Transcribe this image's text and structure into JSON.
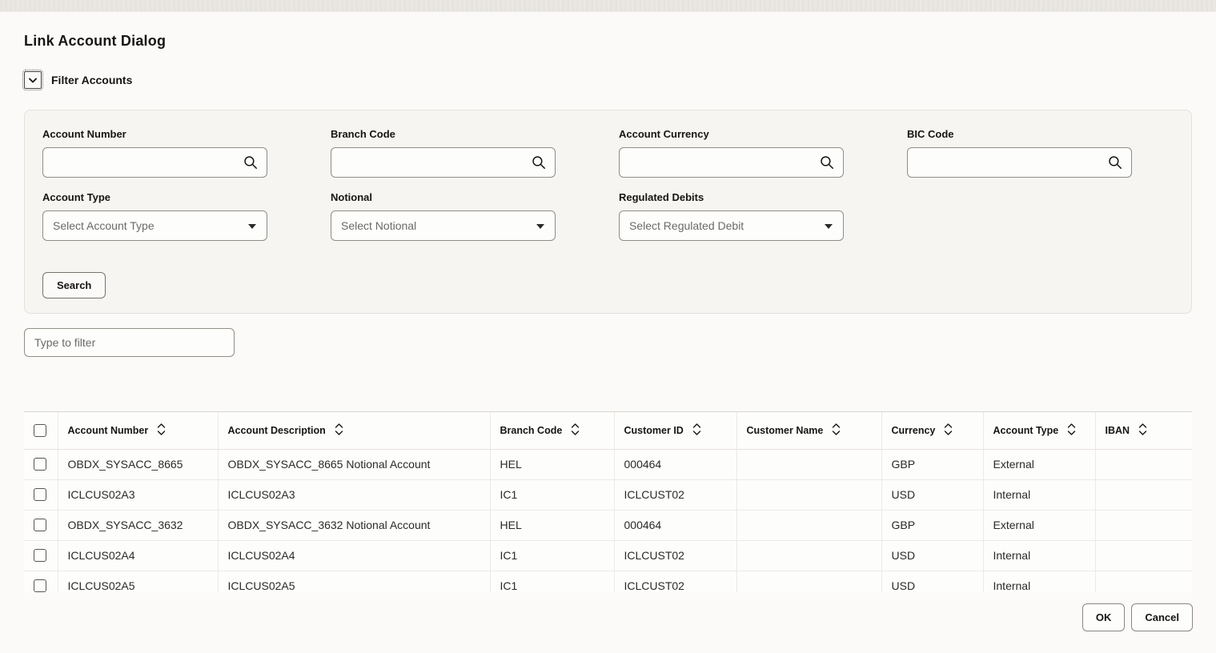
{
  "page": {
    "title": "Link Account Dialog",
    "filter_section_label": "Filter Accounts"
  },
  "filter_panel": {
    "fields": [
      {
        "label": "Account Number",
        "value": ""
      },
      {
        "label": "Branch Code",
        "value": ""
      },
      {
        "label": "Account Currency",
        "value": ""
      },
      {
        "label": "BIC Code",
        "value": ""
      }
    ],
    "selects": [
      {
        "label": "Account Type",
        "value": "Select Account Type"
      },
      {
        "label": "Notional",
        "value": "Select Notional"
      },
      {
        "label": "Regulated Debits",
        "value": "Select Regulated Debit"
      }
    ],
    "search_button_label": "Search"
  },
  "list_filter": {
    "placeholder": "Type to filter",
    "value": ""
  },
  "table": {
    "columns": [
      "Account Number",
      "Account Description",
      "Branch Code",
      "Customer ID",
      "Customer Name",
      "Currency",
      "Account Type",
      "IBAN"
    ],
    "column_keys": [
      "account-number",
      "account-description",
      "branch-code",
      "customer-id",
      "customer-name",
      "currency",
      "account-type",
      "iban"
    ],
    "rows": [
      [
        "OBDX_SYSACC_8665",
        "OBDX_SYSACC_8665 Notional Account",
        "HEL",
        "000464",
        "",
        "GBP",
        "External",
        ""
      ],
      [
        "ICLCUS02A3",
        "ICLCUS02A3",
        "IC1",
        "ICLCUST02",
        "",
        "USD",
        "Internal",
        ""
      ],
      [
        "OBDX_SYSACC_3632",
        "OBDX_SYSACC_3632 Notional Account",
        "HEL",
        "000464",
        "",
        "GBP",
        "External",
        ""
      ],
      [
        "ICLCUS02A4",
        "ICLCUS02A4",
        "IC1",
        "ICLCUST02",
        "",
        "USD",
        "Internal",
        ""
      ],
      [
        "ICLCUS02A5",
        "ICLCUS02A5",
        "IC1",
        "ICLCUST02",
        "",
        "USD",
        "Internal",
        ""
      ]
    ],
    "all_selected": false,
    "row_selected": [
      false,
      false,
      false,
      false,
      false
    ]
  },
  "footer": {
    "ok_label": "OK",
    "cancel_label": "Cancel"
  },
  "colors": {
    "ink": "#161513",
    "muted_text": "#6b6a67",
    "input_border": "#908d85",
    "panel_bg": "#f6f5f2",
    "page_bg": "#fbfaf8",
    "table_border": "#eceae6"
  }
}
